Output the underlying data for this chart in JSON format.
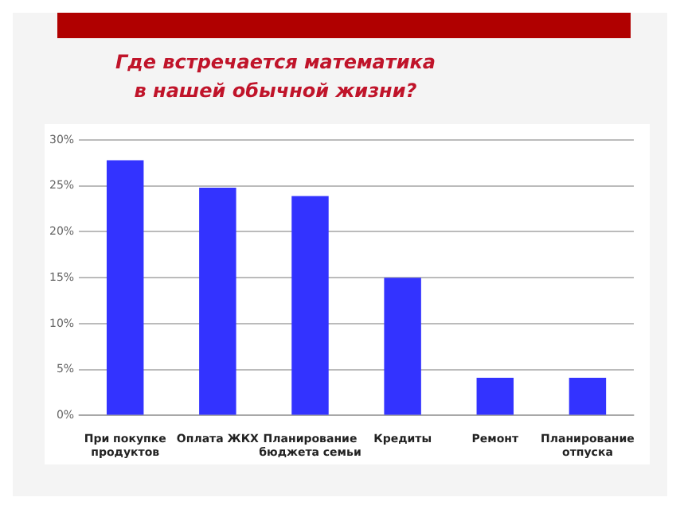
{
  "chart_data": {
    "type": "bar",
    "title": "Где встречается математика в нашей обычной жизни?",
    "categories": [
      "При покупке продуктов",
      "Оплата ЖКХ",
      "Планирование бюджета семьи",
      "Кредиты",
      "Ремонт",
      "Планирование отпуска"
    ],
    "values": [
      27.8,
      24.8,
      23.9,
      15,
      4.1,
      4.1
    ],
    "color": "#3333ff",
    "ylim": [
      0,
      30
    ],
    "yticks": [
      {
        "value": 0,
        "label": "0%"
      },
      {
        "value": 5,
        "label": "5%"
      },
      {
        "value": 10,
        "label": "10%"
      },
      {
        "value": 15,
        "label": "15%"
      },
      {
        "value": 20,
        "label": "20%"
      },
      {
        "value": 25,
        "label": "25%"
      },
      {
        "value": 30,
        "label": "30%"
      }
    ],
    "grid": "y",
    "legend": false
  }
}
